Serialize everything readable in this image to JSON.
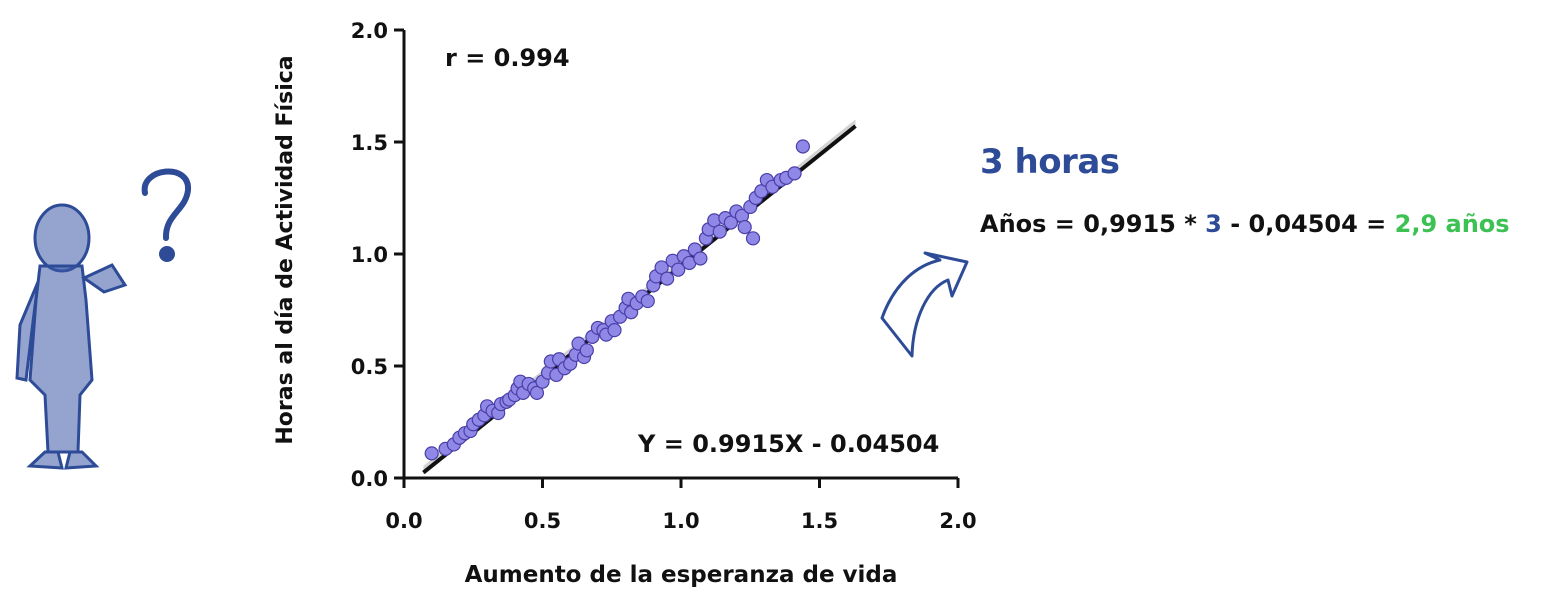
{
  "chart_data": {
    "type": "scatter",
    "xlabel": "Aumento de la esperanza de vida",
    "ylabel": "Horas al día de Actividad Física",
    "xlim": [
      0.0,
      2.0
    ],
    "ylim": [
      0.0,
      2.0
    ],
    "x_ticks": [
      "0.0",
      "0.5",
      "1.0",
      "1.5",
      "2.0"
    ],
    "y_ticks": [
      "0.0",
      "0.5",
      "1.0",
      "1.5",
      "2.0"
    ],
    "grid": false,
    "correlation_label": "r = 0.994",
    "equation_label": "Y = 0.9915X - 0.04504",
    "fit": {
      "slope": 0.9915,
      "intercept": -0.04504,
      "x_range": [
        0.07,
        1.63
      ]
    },
    "colors": {
      "points": "#8f88e6",
      "point_edge": "#4a3fa8",
      "fit_line": "#111111",
      "band": "#c8c8c8"
    },
    "points": [
      [
        0.1,
        0.11
      ],
      [
        0.15,
        0.13
      ],
      [
        0.18,
        0.15
      ],
      [
        0.2,
        0.18
      ],
      [
        0.22,
        0.2
      ],
      [
        0.24,
        0.21
      ],
      [
        0.25,
        0.24
      ],
      [
        0.27,
        0.26
      ],
      [
        0.29,
        0.28
      ],
      [
        0.3,
        0.32
      ],
      [
        0.32,
        0.3
      ],
      [
        0.34,
        0.29
      ],
      [
        0.35,
        0.33
      ],
      [
        0.37,
        0.34
      ],
      [
        0.38,
        0.35
      ],
      [
        0.4,
        0.37
      ],
      [
        0.41,
        0.4
      ],
      [
        0.42,
        0.43
      ],
      [
        0.43,
        0.38
      ],
      [
        0.45,
        0.42
      ],
      [
        0.47,
        0.4
      ],
      [
        0.48,
        0.38
      ],
      [
        0.5,
        0.43
      ],
      [
        0.52,
        0.47
      ],
      [
        0.53,
        0.52
      ],
      [
        0.55,
        0.46
      ],
      [
        0.56,
        0.53
      ],
      [
        0.58,
        0.49
      ],
      [
        0.6,
        0.51
      ],
      [
        0.62,
        0.55
      ],
      [
        0.63,
        0.6
      ],
      [
        0.65,
        0.54
      ],
      [
        0.66,
        0.57
      ],
      [
        0.68,
        0.63
      ],
      [
        0.7,
        0.67
      ],
      [
        0.72,
        0.66
      ],
      [
        0.73,
        0.64
      ],
      [
        0.75,
        0.7
      ],
      [
        0.76,
        0.66
      ],
      [
        0.78,
        0.72
      ],
      [
        0.8,
        0.76
      ],
      [
        0.81,
        0.8
      ],
      [
        0.82,
        0.74
      ],
      [
        0.84,
        0.78
      ],
      [
        0.86,
        0.81
      ],
      [
        0.88,
        0.79
      ],
      [
        0.9,
        0.86
      ],
      [
        0.91,
        0.9
      ],
      [
        0.93,
        0.94
      ],
      [
        0.95,
        0.89
      ],
      [
        0.97,
        0.97
      ],
      [
        0.99,
        0.93
      ],
      [
        1.01,
        0.99
      ],
      [
        1.03,
        0.96
      ],
      [
        1.05,
        1.02
      ],
      [
        1.07,
        0.98
      ],
      [
        1.09,
        1.07
      ],
      [
        1.1,
        1.11
      ],
      [
        1.12,
        1.15
      ],
      [
        1.14,
        1.1
      ],
      [
        1.16,
        1.16
      ],
      [
        1.18,
        1.14
      ],
      [
        1.2,
        1.19
      ],
      [
        1.22,
        1.17
      ],
      [
        1.23,
        1.12
      ],
      [
        1.25,
        1.21
      ],
      [
        1.26,
        1.07
      ],
      [
        1.27,
        1.25
      ],
      [
        1.29,
        1.28
      ],
      [
        1.31,
        1.33
      ],
      [
        1.33,
        1.3
      ],
      [
        1.36,
        1.33
      ],
      [
        1.38,
        1.34
      ],
      [
        1.41,
        1.36
      ],
      [
        1.44,
        1.48
      ]
    ]
  },
  "side": {
    "title": "3 horas",
    "formula_prefix": "Años = 0,9915 * ",
    "formula_hours": "3",
    "formula_mid": " - 0,04504 = ",
    "formula_result": "2,9 años"
  },
  "decor": {
    "figure_icon": "thinking-person-icon",
    "question_icon": "question-mark-icon",
    "arrow_icon": "curved-arrow-icon"
  }
}
